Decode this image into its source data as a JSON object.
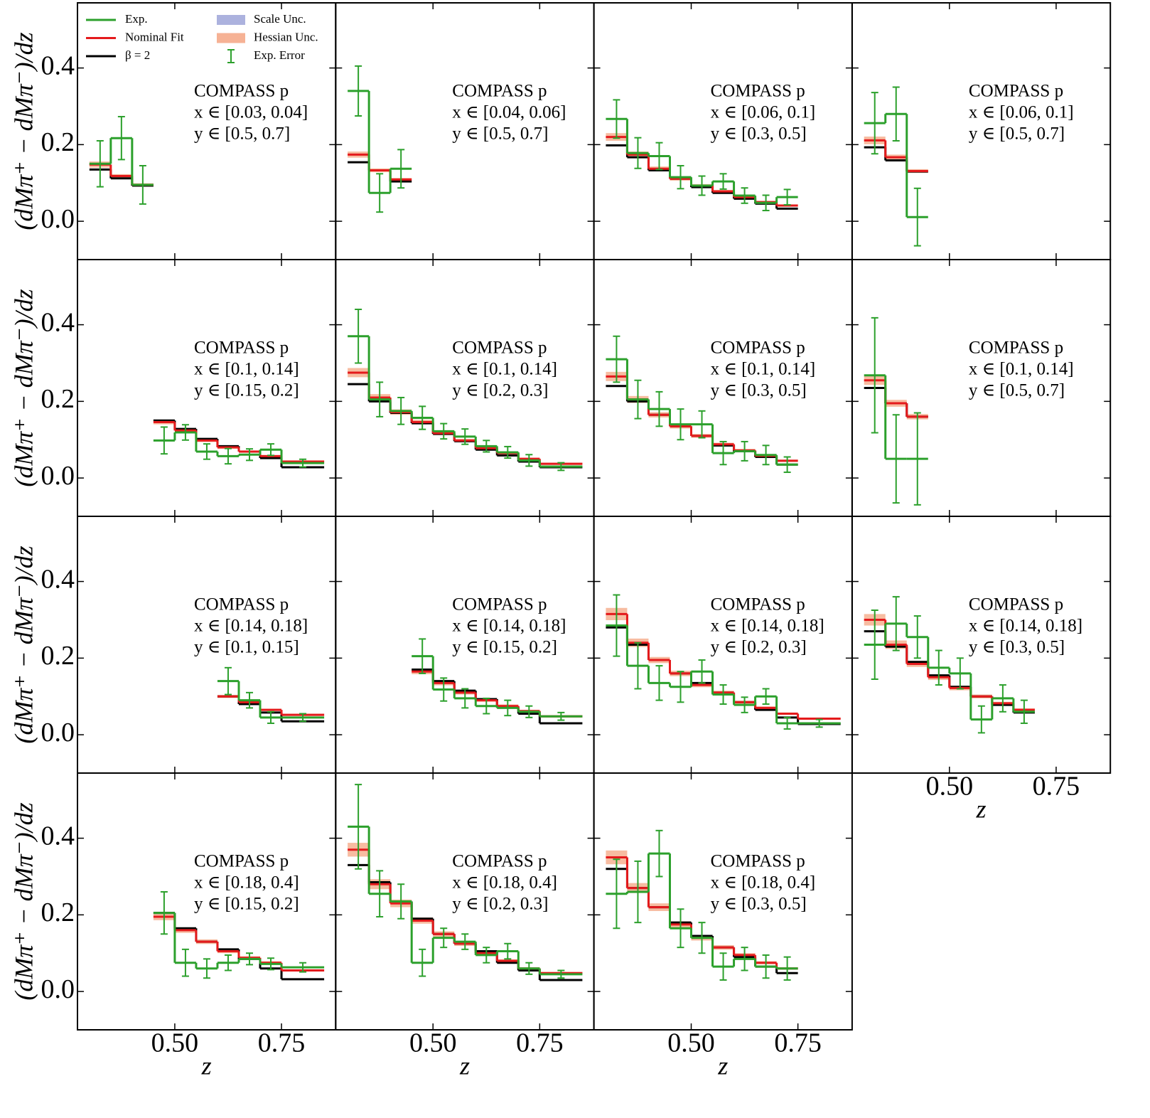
{
  "chart_data": [
    {
      "type": "step",
      "ylabel": "(dMπ⁺ − dMπ⁻)/dz",
      "annotation": [
        "COMPASS p",
        "x ∈ [0.03, 0.04]",
        "y ∈ [0.5, 0.7]"
      ],
      "legend": [
        {
          "name": "Exp.",
          "color": "#2ca02c",
          "kind": "line"
        },
        {
          "name": "Nominal Fit",
          "color": "#e41a1c",
          "kind": "line"
        },
        {
          "name": "β = 2",
          "color": "#000000",
          "kind": "line"
        },
        {
          "name": "Scale Unc.",
          "color": "#9ea4d8",
          "kind": "band"
        },
        {
          "name": "Hessian Unc.",
          "color": "#f4a582",
          "kind": "band"
        },
        {
          "name": "Exp. Error",
          "color": "#2ca02c",
          "kind": "errorbar"
        }
      ],
      "xlim": [
        0.272,
        0.877
      ],
      "ylim": [
        -0.1,
        0.57
      ],
      "xticks": [
        0.5,
        0.75
      ],
      "yticks": [
        {
          "value": 0,
          "label": "0.0"
        },
        {
          "value": 0.2,
          "label": "0.2"
        },
        {
          "value": 0.4,
          "label": "0.4"
        }
      ],
      "bins": [
        0.3,
        0.35,
        0.4,
        0.45
      ],
      "exp": [
        0.15,
        0.217,
        0.095
      ],
      "exp_errors": [
        0.06,
        0.056,
        0.05
      ],
      "nominal": [
        0.148,
        0.118,
        0.095
      ],
      "hessian_errors": [
        0.008,
        0.005,
        0.004
      ],
      "beta2": [
        0.135,
        0.112,
        0.093
      ]
    },
    {
      "type": "step",
      "annotation": [
        "COMPASS p",
        "x ∈ [0.04, 0.06]",
        "y ∈ [0.5, 0.7]"
      ],
      "xlim": [
        0.272,
        0.877
      ],
      "ylim": [
        -0.1,
        0.57
      ],
      "xticks": [
        0.5,
        0.75
      ],
      "yticks": [
        0,
        0.2,
        0.4
      ],
      "bins": [
        0.3,
        0.35,
        0.4,
        0.45
      ],
      "exp": [
        0.34,
        0.074,
        0.137
      ],
      "exp_errors": [
        0.065,
        0.05,
        0.05
      ],
      "nominal": [
        0.174,
        0.133,
        0.109
      ],
      "hessian_errors": [
        0.008,
        0.005,
        0.004
      ],
      "beta2": [
        0.154,
        0.133,
        0.104
      ]
    },
    {
      "type": "step",
      "annotation": [
        "COMPASS p",
        "x ∈ [0.06, 0.1]",
        "y ∈ [0.3, 0.5]"
      ],
      "xlim": [
        0.272,
        0.877
      ],
      "ylim": [
        -0.1,
        0.57
      ],
      "xticks": [
        0.5,
        0.75
      ],
      "yticks": [
        0,
        0.2,
        0.4
      ],
      "bins": [
        0.3,
        0.35,
        0.4,
        0.45,
        0.5,
        0.55,
        0.6,
        0.65,
        0.7,
        0.75
      ],
      "exp": [
        0.267,
        0.178,
        0.17,
        0.115,
        0.093,
        0.104,
        0.067,
        0.048,
        0.063
      ],
      "exp_errors": [
        0.05,
        0.04,
        0.035,
        0.03,
        0.025,
        0.02,
        0.02,
        0.02,
        0.02
      ],
      "nominal": [
        0.22,
        0.174,
        0.137,
        0.111,
        0.093,
        0.078,
        0.063,
        0.05,
        0.041
      ],
      "hessian_errors": [
        0.01,
        0.008,
        0.006,
        0.005,
        0.004,
        0.004,
        0.003,
        0.003,
        0.003
      ],
      "beta2": [
        0.198,
        0.167,
        0.133,
        0.111,
        0.089,
        0.074,
        0.059,
        0.046,
        0.033
      ]
    },
    {
      "type": "step",
      "annotation": [
        "COMPASS p",
        "x ∈ [0.06, 0.1]",
        "y ∈ [0.5, 0.7]"
      ],
      "xlim": [
        0.272,
        0.877
      ],
      "ylim": [
        -0.1,
        0.57
      ],
      "xticks": [
        0.5,
        0.75
      ],
      "yticks": [
        0,
        0.2,
        0.4
      ],
      "bins": [
        0.3,
        0.35,
        0.4,
        0.45
      ],
      "exp": [
        0.256,
        0.28,
        0.011
      ],
      "exp_errors": [
        0.08,
        0.07,
        0.075
      ],
      "nominal": [
        0.211,
        0.167,
        0.131
      ],
      "hessian_errors": [
        0.01,
        0.007,
        0.005
      ],
      "beta2": [
        0.193,
        0.159,
        0.13
      ]
    },
    {
      "type": "step",
      "ylabel": "(dMπ⁺ − dMπ⁻)/dz",
      "annotation": [
        "COMPASS p",
        "x ∈ [0.1, 0.14]",
        "y ∈ [0.15, 0.2]"
      ],
      "xlim": [
        0.272,
        0.877
      ],
      "ylim": [
        -0.1,
        0.57
      ],
      "xticks": [
        0.5,
        0.75
      ],
      "yticks": [
        {
          "value": 0,
          "label": "0.0"
        },
        {
          "value": 0.2,
          "label": "0.2"
        },
        {
          "value": 0.4,
          "label": "0.4"
        }
      ],
      "bins": [
        0.45,
        0.5,
        0.55,
        0.6,
        0.65,
        0.7,
        0.75,
        0.85
      ],
      "exp": [
        0.098,
        0.119,
        0.069,
        0.057,
        0.061,
        0.074,
        0.039
      ],
      "exp_errors": [
        0.035,
        0.02,
        0.02,
        0.02,
        0.015,
        0.015,
        0.01
      ],
      "nominal": [
        0.146,
        0.124,
        0.098,
        0.08,
        0.069,
        0.057,
        0.043
      ],
      "hessian_errors": [
        0.006,
        0.005,
        0.004,
        0.004,
        0.003,
        0.003,
        0.003
      ],
      "beta2": [
        0.15,
        0.128,
        0.102,
        0.083,
        0.069,
        0.052,
        0.028
      ]
    },
    {
      "type": "step",
      "annotation": [
        "COMPASS p",
        "x ∈ [0.1, 0.14]",
        "y ∈ [0.2, 0.3]"
      ],
      "xlim": [
        0.272,
        0.877
      ],
      "ylim": [
        -0.1,
        0.57
      ],
      "xticks": [
        0.5,
        0.75
      ],
      "yticks": [
        0,
        0.2,
        0.4
      ],
      "bins": [
        0.3,
        0.35,
        0.4,
        0.45,
        0.5,
        0.55,
        0.6,
        0.65,
        0.7,
        0.75,
        0.85
      ],
      "exp": [
        0.37,
        0.205,
        0.175,
        0.157,
        0.122,
        0.108,
        0.083,
        0.067,
        0.046,
        0.03
      ],
      "exp_errors": [
        0.07,
        0.045,
        0.035,
        0.03,
        0.02,
        0.02,
        0.015,
        0.015,
        0.015,
        0.01
      ],
      "nominal": [
        0.275,
        0.21,
        0.172,
        0.146,
        0.117,
        0.098,
        0.078,
        0.065,
        0.05,
        0.037
      ],
      "hessian_errors": [
        0.012,
        0.009,
        0.007,
        0.006,
        0.005,
        0.004,
        0.004,
        0.003,
        0.003,
        0.003
      ],
      "beta2": [
        0.245,
        0.2,
        0.17,
        0.143,
        0.115,
        0.096,
        0.074,
        0.059,
        0.043,
        0.028
      ]
    },
    {
      "type": "step",
      "annotation": [
        "COMPASS p",
        "x ∈ [0.1, 0.14]",
        "y ∈ [0.3, 0.5]"
      ],
      "xlim": [
        0.272,
        0.877
      ],
      "ylim": [
        -0.1,
        0.57
      ],
      "xticks": [
        0.5,
        0.75
      ],
      "yticks": [
        0,
        0.2,
        0.4
      ],
      "bins": [
        0.3,
        0.35,
        0.4,
        0.45,
        0.5,
        0.55,
        0.6,
        0.65,
        0.7,
        0.75
      ],
      "exp": [
        0.31,
        0.205,
        0.18,
        0.14,
        0.14,
        0.065,
        0.07,
        0.06,
        0.035
      ],
      "exp_errors": [
        0.06,
        0.05,
        0.045,
        0.04,
        0.035,
        0.03,
        0.025,
        0.025,
        0.02
      ],
      "nominal": [
        0.265,
        0.205,
        0.165,
        0.135,
        0.11,
        0.088,
        0.072,
        0.058,
        0.045
      ],
      "hessian_errors": [
        0.012,
        0.009,
        0.007,
        0.006,
        0.005,
        0.004,
        0.004,
        0.003,
        0.003
      ],
      "beta2": [
        0.24,
        0.2,
        0.165,
        0.135,
        0.11,
        0.085,
        0.07,
        0.055,
        0.035
      ]
    },
    {
      "type": "step",
      "annotation": [
        "COMPASS p",
        "x ∈ [0.1, 0.14]",
        "y ∈ [0.5, 0.7]"
      ],
      "xlim": [
        0.272,
        0.877
      ],
      "ylim": [
        -0.1,
        0.57
      ],
      "xticks": [
        0.5,
        0.75
      ],
      "yticks": [
        0,
        0.2,
        0.4
      ],
      "bins": [
        0.3,
        0.35,
        0.4,
        0.45
      ],
      "exp": [
        0.268,
        0.05,
        0.05
      ],
      "exp_errors": [
        0.15,
        0.115,
        0.12
      ],
      "nominal": [
        0.255,
        0.195,
        0.16
      ],
      "hessian_errors": [
        0.012,
        0.009,
        0.007
      ],
      "beta2": [
        0.235,
        0.195,
        0.16
      ]
    },
    {
      "type": "step",
      "ylabel": "(dMπ⁺ − dMπ⁻)/dz",
      "annotation": [
        "COMPASS p",
        "x ∈ [0.14, 0.18]",
        "y ∈ [0.1, 0.15]"
      ],
      "xlim": [
        0.272,
        0.877
      ],
      "ylim": [
        -0.1,
        0.57
      ],
      "xticks": [
        0.5,
        0.75
      ],
      "yticks": [
        {
          "value": 0,
          "label": "0.0"
        },
        {
          "value": 0.2,
          "label": "0.2"
        },
        {
          "value": 0.4,
          "label": "0.4"
        }
      ],
      "bins": [
        0.6,
        0.65,
        0.7,
        0.75,
        0.85
      ],
      "exp": [
        0.14,
        0.09,
        0.045,
        0.045
      ],
      "exp_errors": [
        0.035,
        0.02,
        0.015,
        0.01
      ],
      "nominal": [
        0.1,
        0.085,
        0.065,
        0.052
      ],
      "hessian_errors": [
        0.004,
        0.003,
        0.003,
        0.003
      ],
      "beta2": [
        0.1,
        0.08,
        0.058,
        0.035
      ]
    },
    {
      "type": "step",
      "annotation": [
        "COMPASS p",
        "x ∈ [0.14, 0.18]",
        "y ∈ [0.15, 0.2]"
      ],
      "xlim": [
        0.272,
        0.877
      ],
      "ylim": [
        -0.1,
        0.57
      ],
      "xticks": [
        0.5,
        0.75
      ],
      "yticks": [
        0,
        0.2,
        0.4
      ],
      "bins": [
        0.45,
        0.5,
        0.55,
        0.6,
        0.65,
        0.7,
        0.75,
        0.85
      ],
      "exp": [
        0.205,
        0.118,
        0.095,
        0.075,
        0.07,
        0.06,
        0.048
      ],
      "exp_errors": [
        0.045,
        0.03,
        0.025,
        0.02,
        0.02,
        0.015,
        0.01
      ],
      "nominal": [
        0.165,
        0.135,
        0.11,
        0.09,
        0.075,
        0.062,
        0.048
      ],
      "hessian_errors": [
        0.007,
        0.006,
        0.005,
        0.004,
        0.004,
        0.003,
        0.003
      ],
      "beta2": [
        0.17,
        0.14,
        0.115,
        0.093,
        0.072,
        0.055,
        0.03
      ]
    },
    {
      "type": "step",
      "annotation": [
        "COMPASS p",
        "x ∈ [0.14, 0.18]",
        "y ∈ [0.2, 0.3]"
      ],
      "xlim": [
        0.272,
        0.877
      ],
      "ylim": [
        -0.1,
        0.57
      ],
      "xticks": [
        0.5,
        0.75
      ],
      "yticks": [
        0,
        0.2,
        0.4
      ],
      "bins": [
        0.3,
        0.35,
        0.4,
        0.45,
        0.5,
        0.55,
        0.6,
        0.65,
        0.7,
        0.75,
        0.85
      ],
      "exp": [
        0.285,
        0.18,
        0.135,
        0.125,
        0.165,
        0.105,
        0.078,
        0.1,
        0.03,
        0.03
      ],
      "exp_errors": [
        0.08,
        0.06,
        0.045,
        0.04,
        0.03,
        0.025,
        0.02,
        0.02,
        0.015,
        0.01
      ],
      "nominal": [
        0.315,
        0.24,
        0.195,
        0.16,
        0.13,
        0.11,
        0.085,
        0.07,
        0.055,
        0.042
      ],
      "hessian_errors": [
        0.016,
        0.011,
        0.008,
        0.007,
        0.006,
        0.005,
        0.004,
        0.004,
        0.003,
        0.003
      ],
      "beta2": [
        0.28,
        0.235,
        0.195,
        0.16,
        0.135,
        0.11,
        0.085,
        0.065,
        0.045,
        0.028
      ]
    },
    {
      "type": "step",
      "xlabel": "z",
      "annotation": [
        "COMPASS p",
        "x ∈ [0.14, 0.18]",
        "y ∈ [0.3, 0.5]"
      ],
      "xlim": [
        0.272,
        0.877
      ],
      "ylim": [
        -0.1,
        0.57
      ],
      "xticks": [
        {
          "value": 0.5,
          "label": "0.50"
        },
        {
          "value": 0.75,
          "label": "0.75"
        }
      ],
      "yticks": [
        0,
        0.2,
        0.4
      ],
      "bins": [
        0.3,
        0.35,
        0.4,
        0.45,
        0.5,
        0.55,
        0.6,
        0.65,
        0.7
      ],
      "exp": [
        0.235,
        0.29,
        0.255,
        0.175,
        0.16,
        0.04,
        0.095,
        0.06
      ],
      "exp_errors": [
        0.09,
        0.07,
        0.055,
        0.045,
        0.04,
        0.035,
        0.035,
        0.03
      ],
      "nominal": [
        0.3,
        0.235,
        0.185,
        0.15,
        0.122,
        0.1,
        0.082,
        0.065
      ],
      "hessian_errors": [
        0.015,
        0.011,
        0.008,
        0.007,
        0.006,
        0.005,
        0.004,
        0.004
      ],
      "beta2": [
        0.27,
        0.23,
        0.19,
        0.155,
        0.125,
        0.1,
        0.078,
        0.058
      ]
    },
    {
      "type": "step",
      "ylabel": "(dMπ⁺ − dMπ⁻)/dz",
      "xlabel": "z",
      "annotation": [
        "COMPASS p",
        "x ∈ [0.18, 0.4]",
        "y ∈ [0.15, 0.2]"
      ],
      "xlim": [
        0.272,
        0.877
      ],
      "ylim": [
        -0.1,
        0.57
      ],
      "xticks": [
        {
          "value": 0.5,
          "label": "0.50"
        },
        {
          "value": 0.75,
          "label": "0.75"
        }
      ],
      "yticks": [
        {
          "value": 0,
          "label": "0.0"
        },
        {
          "value": 0.2,
          "label": "0.2"
        },
        {
          "value": 0.4,
          "label": "0.4"
        }
      ],
      "bins": [
        0.45,
        0.5,
        0.55,
        0.6,
        0.65,
        0.7,
        0.75,
        0.85
      ],
      "exp": [
        0.205,
        0.075,
        0.06,
        0.075,
        0.085,
        0.072,
        0.063
      ],
      "exp_errors": [
        0.055,
        0.035,
        0.025,
        0.02,
        0.015,
        0.015,
        0.012
      ],
      "nominal": [
        0.195,
        0.16,
        0.13,
        0.105,
        0.088,
        0.075,
        0.055
      ],
      "hessian_errors": [
        0.009,
        0.007,
        0.006,
        0.005,
        0.004,
        0.004,
        0.003
      ],
      "beta2": [
        0.205,
        0.165,
        0.13,
        0.11,
        0.085,
        0.06,
        0.032
      ]
    },
    {
      "type": "step",
      "xlabel": "z",
      "annotation": [
        "COMPASS p",
        "x ∈ [0.18, 0.4]",
        "y ∈ [0.2, 0.3]"
      ],
      "xlim": [
        0.272,
        0.877
      ],
      "ylim": [
        -0.1,
        0.57
      ],
      "xticks": [
        {
          "value": 0.5,
          "label": "0.50"
        },
        {
          "value": 0.75,
          "label": "0.75"
        }
      ],
      "yticks": [
        0,
        0.2,
        0.4
      ],
      "bins": [
        0.3,
        0.35,
        0.4,
        0.45,
        0.5,
        0.55,
        0.6,
        0.65,
        0.7,
        0.75,
        0.85
      ],
      "exp": [
        0.43,
        0.255,
        0.235,
        0.075,
        0.14,
        0.13,
        0.095,
        0.105,
        0.06,
        0.045
      ],
      "exp_errors": [
        0.11,
        0.06,
        0.045,
        0.035,
        0.025,
        0.02,
        0.02,
        0.02,
        0.015,
        0.01
      ],
      "nominal": [
        0.37,
        0.28,
        0.23,
        0.185,
        0.15,
        0.125,
        0.1,
        0.08,
        0.06,
        0.048
      ],
      "hessian_errors": [
        0.018,
        0.013,
        0.01,
        0.008,
        0.007,
        0.006,
        0.005,
        0.004,
        0.003,
        0.003
      ],
      "beta2": [
        0.33,
        0.285,
        0.235,
        0.19,
        0.15,
        0.125,
        0.105,
        0.075,
        0.055,
        0.03
      ]
    },
    {
      "type": "step",
      "xlabel": "z",
      "annotation": [
        "COMPASS p",
        "x ∈ [0.18, 0.4]",
        "y ∈ [0.3, 0.5]"
      ],
      "xlim": [
        0.272,
        0.877
      ],
      "ylim": [
        -0.1,
        0.57
      ],
      "xticks": [
        {
          "value": 0.5,
          "label": "0.50"
        },
        {
          "value": 0.75,
          "label": "0.75"
        }
      ],
      "yticks": [
        0,
        0.2,
        0.4
      ],
      "bins": [
        0.3,
        0.35,
        0.4,
        0.45,
        0.5,
        0.55,
        0.6,
        0.65,
        0.7,
        0.75
      ],
      "exp": [
        0.255,
        0.26,
        0.36,
        0.165,
        0.14,
        0.065,
        0.085,
        0.065,
        0.06
      ],
      "exp_errors": [
        0.09,
        0.08,
        0.06,
        0.05,
        0.04,
        0.035,
        0.03,
        0.03,
        0.03
      ],
      "nominal": [
        0.35,
        0.27,
        0.22,
        0.175,
        0.14,
        0.115,
        0.095,
        0.075,
        0.06
      ],
      "hessian_errors": [
        0.018,
        0.013,
        0.01,
        0.008,
        0.007,
        0.006,
        0.005,
        0.004,
        0.003
      ],
      "beta2": [
        0.32,
        0.27,
        0.22,
        0.18,
        0.145,
        0.115,
        0.09,
        0.065,
        0.048
      ]
    }
  ]
}
